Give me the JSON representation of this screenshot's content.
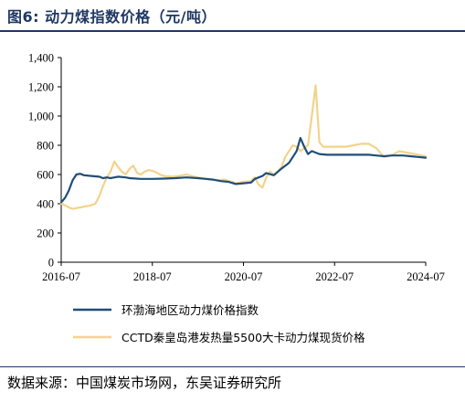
{
  "figure": {
    "title": "图6:  动力煤指数价格（元/吨）",
    "source": "数据来源：中国煤炭市场网，东吴证券研究所"
  },
  "colors": {
    "series_1": "#1F4E79",
    "series_2": "#F2D38A",
    "title": "#1F3864"
  },
  "chart_data": {
    "type": "line",
    "title": "",
    "xlabel": "",
    "ylabel": "",
    "x_ticks": [
      "2016-07",
      "2018-07",
      "2020-07",
      "2022-07",
      "2024-07"
    ],
    "x_range": [
      "2016-07",
      "2024-07"
    ],
    "y_ticks": [
      "0",
      "200",
      "400",
      "600",
      "800",
      "1,000",
      "1,200",
      "1,400"
    ],
    "ylim": [
      0,
      1400
    ],
    "grid": false,
    "legend_position": "bottom",
    "series": [
      {
        "name": "环渤海地区动力煤价格指数",
        "color": "#1F4E79",
        "points": [
          [
            "2016-07-01",
            410
          ],
          [
            "2016-08-01",
            440
          ],
          [
            "2016-09-01",
            490
          ],
          [
            "2016-10-01",
            560
          ],
          [
            "2016-11-01",
            600
          ],
          [
            "2016-12-01",
            605
          ],
          [
            "2017-01-01",
            595
          ],
          [
            "2017-03-01",
            590
          ],
          [
            "2017-05-01",
            585
          ],
          [
            "2017-06-01",
            575
          ],
          [
            "2017-07-01",
            580
          ],
          [
            "2017-08-01",
            575
          ],
          [
            "2017-09-01",
            580
          ],
          [
            "2017-10-01",
            585
          ],
          [
            "2017-12-01",
            580
          ],
          [
            "2018-01-01",
            575
          ],
          [
            "2018-04-01",
            570
          ],
          [
            "2018-07-01",
            570
          ],
          [
            "2018-10-01",
            572
          ],
          [
            "2019-01-01",
            575
          ],
          [
            "2019-04-01",
            580
          ],
          [
            "2019-07-01",
            575
          ],
          [
            "2019-09-01",
            570
          ],
          [
            "2019-11-01",
            565
          ],
          [
            "2020-01-01",
            555
          ],
          [
            "2020-03-01",
            550
          ],
          [
            "2020-05-01",
            535
          ],
          [
            "2020-07-01",
            540
          ],
          [
            "2020-09-01",
            545
          ],
          [
            "2020-10-01",
            570
          ],
          [
            "2020-11-01",
            580
          ],
          [
            "2020-12-01",
            590
          ],
          [
            "2021-01-01",
            610
          ],
          [
            "2021-03-01",
            595
          ],
          [
            "2021-05-01",
            640
          ],
          [
            "2021-07-01",
            680
          ],
          [
            "2021-08-01",
            720
          ],
          [
            "2021-09-01",
            760
          ],
          [
            "2021-10-01",
            850
          ],
          [
            "2021-11-01",
            790
          ],
          [
            "2021-12-01",
            740
          ],
          [
            "2022-01-01",
            760
          ],
          [
            "2022-03-01",
            740
          ],
          [
            "2022-05-01",
            735
          ],
          [
            "2022-07-01",
            735
          ],
          [
            "2022-10-01",
            735
          ],
          [
            "2023-01-01",
            735
          ],
          [
            "2023-04-01",
            735
          ],
          [
            "2023-06-01",
            730
          ],
          [
            "2023-08-01",
            725
          ],
          [
            "2023-10-01",
            730
          ],
          [
            "2024-01-01",
            730
          ],
          [
            "2024-03-01",
            725
          ],
          [
            "2024-05-01",
            720
          ],
          [
            "2024-07-01",
            715
          ]
        ]
      },
      {
        "name": "CCTD秦皇岛港发热量5500大卡动力煤现货价格",
        "color": "#F2D38A",
        "points": [
          [
            "2016-07-01",
            400
          ],
          [
            "2016-08-01",
            390
          ],
          [
            "2016-09-01",
            375
          ],
          [
            "2016-10-01",
            365
          ],
          [
            "2016-11-01",
            370
          ],
          [
            "2016-12-01",
            375
          ],
          [
            "2017-01-01",
            380
          ],
          [
            "2017-02-01",
            385
          ],
          [
            "2017-03-01",
            390
          ],
          [
            "2017-04-01",
            400
          ],
          [
            "2017-05-01",
            450
          ],
          [
            "2017-06-01",
            520
          ],
          [
            "2017-07-01",
            580
          ],
          [
            "2017-08-01",
            620
          ],
          [
            "2017-09-01",
            690
          ],
          [
            "2017-10-01",
            650
          ],
          [
            "2017-11-01",
            620
          ],
          [
            "2017-12-01",
            600
          ],
          [
            "2018-01-01",
            640
          ],
          [
            "2018-02-01",
            660
          ],
          [
            "2018-03-01",
            610
          ],
          [
            "2018-04-01",
            600
          ],
          [
            "2018-05-01",
            620
          ],
          [
            "2018-06-01",
            630
          ],
          [
            "2018-07-01",
            625
          ],
          [
            "2018-08-01",
            615
          ],
          [
            "2018-09-01",
            600
          ],
          [
            "2018-10-01",
            590
          ],
          [
            "2018-12-01",
            585
          ],
          [
            "2019-02-01",
            590
          ],
          [
            "2019-04-01",
            600
          ],
          [
            "2019-06-01",
            585
          ],
          [
            "2019-08-01",
            575
          ],
          [
            "2019-10-01",
            570
          ],
          [
            "2019-12-01",
            560
          ],
          [
            "2020-02-01",
            565
          ],
          [
            "2020-04-01",
            550
          ],
          [
            "2020-05-01",
            540
          ],
          [
            "2020-07-01",
            550
          ],
          [
            "2020-09-01",
            555
          ],
          [
            "2020-10-01",
            580
          ],
          [
            "2020-11-01",
            530
          ],
          [
            "2020-12-01",
            510
          ],
          [
            "2021-01-01",
            580
          ],
          [
            "2021-02-01",
            620
          ],
          [
            "2021-03-01",
            600
          ],
          [
            "2021-04-01",
            620
          ],
          [
            "2021-05-01",
            650
          ],
          [
            "2021-06-01",
            720
          ],
          [
            "2021-07-01",
            760
          ],
          [
            "2021-08-01",
            800
          ],
          [
            "2021-09-01",
            790
          ],
          [
            "2021-10-01",
            760
          ],
          [
            "2021-11-01",
            780
          ],
          [
            "2021-12-01",
            800
          ],
          [
            "2022-01-01",
            1000
          ],
          [
            "2022-02-01",
            1210
          ],
          [
            "2022-03-01",
            820
          ],
          [
            "2022-04-01",
            790
          ],
          [
            "2022-06-01",
            790
          ],
          [
            "2022-08-01",
            790
          ],
          [
            "2022-10-01",
            790
          ],
          [
            "2022-12-01",
            800
          ],
          [
            "2023-02-01",
            810
          ],
          [
            "2023-04-01",
            810
          ],
          [
            "2023-06-01",
            780
          ],
          [
            "2023-08-01",
            720
          ],
          [
            "2023-10-01",
            730
          ],
          [
            "2023-12-01",
            760
          ],
          [
            "2024-02-01",
            750
          ],
          [
            "2024-04-01",
            740
          ],
          [
            "2024-06-01",
            730
          ],
          [
            "2024-07-01",
            725
          ]
        ]
      }
    ]
  }
}
